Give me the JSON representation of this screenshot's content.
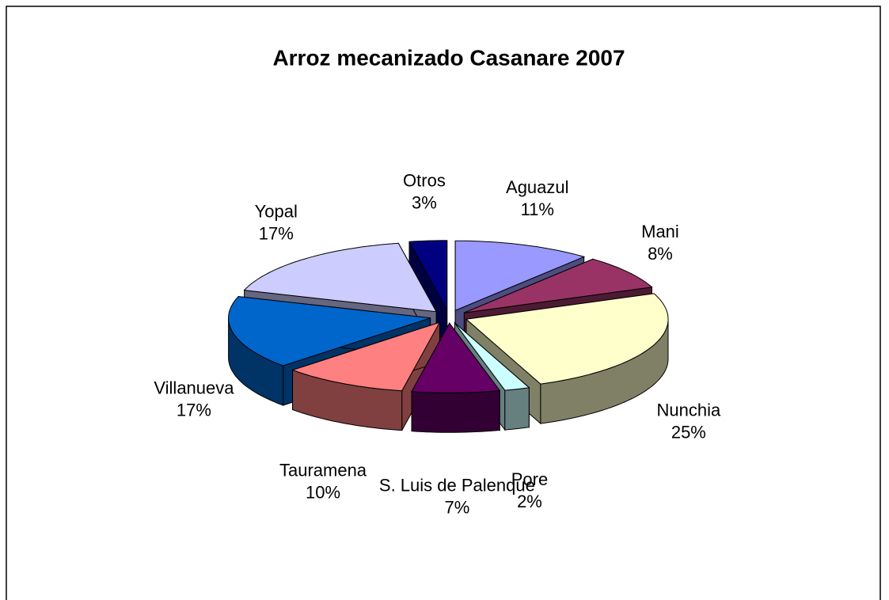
{
  "chart_data": {
    "type": "pie",
    "title": "Arroz mecanizado Casanare 2007",
    "categories": [
      "Aguazul",
      "Mani",
      "Nunchia",
      "Pore",
      "S. Luis de Palenque",
      "Tauramena",
      "Villanueva",
      "Yopal",
      "Otros"
    ],
    "values": [
      11,
      8,
      25,
      2,
      7,
      10,
      17,
      17,
      3
    ],
    "value_labels": [
      "11%",
      "8%",
      "25%",
      "2%",
      "7%",
      "10%",
      "17%",
      "17%",
      "3%"
    ],
    "colors": [
      "#9999ff",
      "#993366",
      "#ffffcc",
      "#ccffff",
      "#660066",
      "#ff8080",
      "#0066cc",
      "#ccccff",
      "#000080"
    ]
  }
}
